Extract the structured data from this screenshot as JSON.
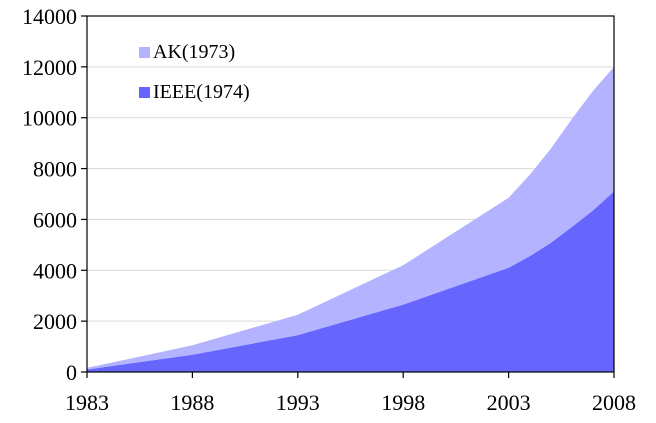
{
  "chart_data": {
    "type": "area",
    "stacked": true,
    "title": "",
    "xlabel": "",
    "ylabel": "",
    "xlim": [
      1983,
      2008
    ],
    "ylim": [
      0,
      14000
    ],
    "x": [
      1983,
      1988,
      1993,
      1998,
      2003,
      2004,
      2005,
      2006,
      2007,
      2008
    ],
    "x_ticks": [
      "1983",
      "1988",
      "1993",
      "1998",
      "2003",
      "2008"
    ],
    "y_ticks": [
      "0",
      "2000",
      "4000",
      "6000",
      "8000",
      "10000",
      "12000",
      "14000"
    ],
    "grid": true,
    "legend_position": "top-left",
    "series": [
      {
        "name": "IEEE(1974)",
        "color": "#6666ff",
        "values": [
          100,
          680,
          1450,
          2650,
          4100,
          4550,
          5080,
          5700,
          6350,
          7100
        ]
      },
      {
        "name": "AK(1973)",
        "color": "#b3b3ff",
        "values": [
          60,
          370,
          800,
          1550,
          2750,
          3200,
          3700,
          4250,
          4700,
          4900
        ]
      }
    ]
  }
}
